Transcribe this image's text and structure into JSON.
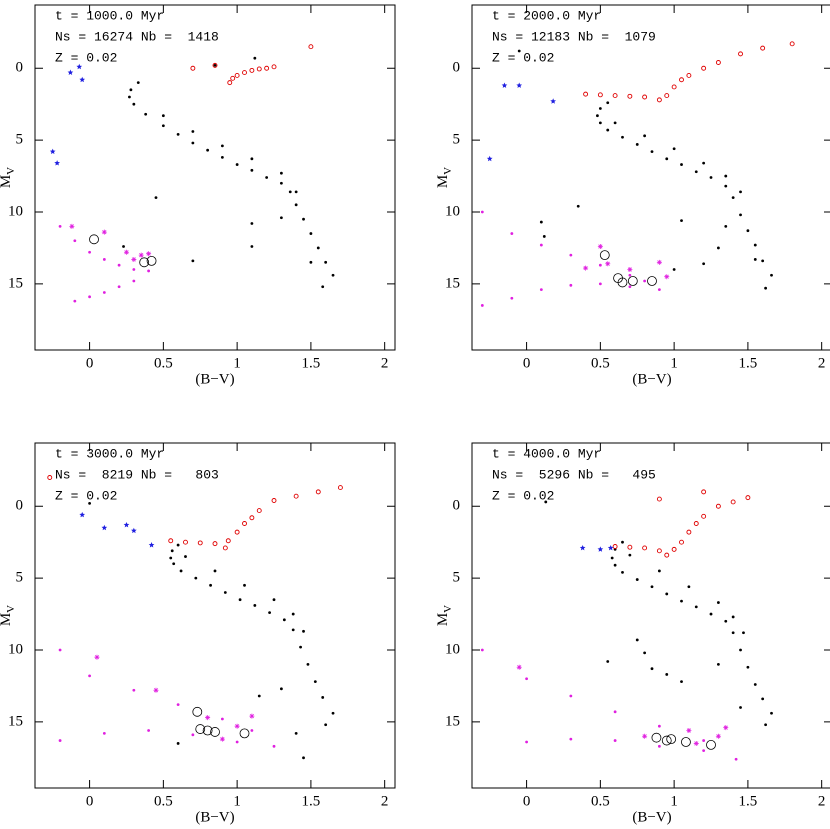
{
  "chart_data": [
    {
      "type": "scatter",
      "title_lines": [
        "t = 1000.0 Myr",
        "Ns = 16274 Nb =  1418",
        "Z = 0.02"
      ],
      "xlabel": "(B−V)",
      "ylabel": "M",
      "ylabel_sub": "V",
      "xlim": [
        -0.37,
        2.07
      ],
      "ylim": [
        19.6,
        -4.4
      ],
      "xticks": [
        0,
        0.5,
        1,
        1.5,
        2
      ],
      "yticks": [
        0,
        5,
        10,
        15
      ],
      "series": [
        {
          "color": "#000000",
          "marker": "dot",
          "x": [
            0.33,
            0.28,
            0.27,
            0.3,
            0.38,
            0.5,
            0.6,
            0.7,
            0.8,
            0.9,
            1.0,
            1.1,
            1.2,
            1.3,
            1.36,
            1.4,
            1.45,
            1.5,
            1.55,
            1.6,
            1.65,
            0.5,
            0.7,
            0.9,
            1.1,
            1.3,
            1.4,
            1.5,
            1.58,
            0.85,
            1.12,
            0.45,
            1.1,
            1.1,
            0.7,
            1.3,
            0.23
          ],
          "y": [
            1.0,
            1.5,
            2.0,
            2.5,
            3.2,
            4.0,
            4.6,
            5.2,
            5.7,
            6.2,
            6.7,
            7.1,
            7.6,
            8.0,
            8.6,
            9.5,
            10.5,
            11.5,
            12.5,
            13.5,
            14.4,
            3.3,
            4.4,
            5.4,
            6.3,
            7.3,
            8.6,
            13.5,
            15.2,
            -0.2,
            -0.7,
            9.0,
            10.8,
            12.4,
            13.4,
            10.4,
            12.4
          ]
        },
        {
          "color": "#e020e0",
          "marker": "dot",
          "x": [
            -0.2,
            -0.1,
            0,
            0.1,
            0.2,
            0.3,
            0.4,
            0.3,
            0.2,
            0.1,
            0,
            -0.1
          ],
          "y": [
            11,
            12,
            12.8,
            13.3,
            13.7,
            14.0,
            14.1,
            14.8,
            15.2,
            15.6,
            15.9,
            16.2
          ]
        },
        {
          "color": "#e020e0",
          "marker": "asterisk",
          "x": [
            0.25,
            0.35,
            0.4,
            0.3,
            -0.12,
            0.1
          ],
          "y": [
            12.8,
            13.0,
            12.9,
            13.3,
            11.0,
            11.4
          ]
        },
        {
          "color": "#e00000",
          "marker": "circle",
          "x": [
            0.95,
            0.97,
            1.0,
            1.05,
            1.1,
            1.15,
            1.2,
            1.25,
            1.5,
            0.7,
            0.85
          ],
          "y": [
            1.0,
            0.7,
            0.5,
            0.3,
            0.15,
            0.05,
            0.0,
            -0.1,
            -1.5,
            0.0,
            -0.2
          ]
        },
        {
          "color": "#2020e0",
          "marker": "star",
          "x": [
            -0.13,
            -0.07,
            -0.05,
            -0.25,
            -0.22
          ],
          "y": [
            0.3,
            -0.1,
            0.8,
            5.8,
            6.6
          ]
        },
        {
          "color": "#000000",
          "marker": "ring",
          "x": [
            0.03,
            0.37,
            0.42
          ],
          "y": [
            11.9,
            13.5,
            13.4
          ]
        }
      ]
    },
    {
      "type": "scatter",
      "title_lines": [
        "t = 2000.0 Myr",
        "Ns = 12183 Nb =  1079",
        "Z = 0.02"
      ],
      "xlabel": "(B−V)",
      "ylabel": "M",
      "ylabel_sub": "V",
      "xlim": [
        -0.37,
        2.07
      ],
      "ylim": [
        19.6,
        -4.4
      ],
      "xticks": [
        0,
        0.5,
        1,
        1.5,
        2
      ],
      "yticks": [
        0,
        5,
        10,
        15
      ],
      "series": [
        {
          "color": "#000000",
          "marker": "dot",
          "x": [
            0.55,
            0.5,
            0.48,
            0.5,
            0.55,
            0.65,
            0.75,
            0.85,
            0.95,
            1.05,
            1.15,
            1.25,
            1.35,
            1.4,
            1.45,
            1.5,
            1.55,
            1.6,
            1.66,
            0.6,
            0.8,
            1.0,
            1.2,
            1.35,
            1.45,
            1.55,
            1.62,
            -0.05,
            0.1,
            0.12,
            0.35,
            1.0,
            1.2,
            1.3,
            1.05,
            1.35
          ],
          "y": [
            2.4,
            2.8,
            3.3,
            3.8,
            4.3,
            4.8,
            5.3,
            5.8,
            6.3,
            6.7,
            7.2,
            7.6,
            8.2,
            9.0,
            10.2,
            11.3,
            12.3,
            13.4,
            14.4,
            3.8,
            4.7,
            5.6,
            6.6,
            7.5,
            8.6,
            13.3,
            15.3,
            -1.2,
            10.7,
            11.7,
            9.6,
            14.0,
            13.6,
            12.5,
            10.6,
            11.0
          ]
        },
        {
          "color": "#e020e0",
          "marker": "dot",
          "x": [
            -0.3,
            -0.1,
            0.1,
            0.3,
            0.5,
            0.7,
            0.8,
            0.9,
            0.7,
            0.5,
            0.3,
            0.1,
            -0.1,
            -0.3
          ],
          "y": [
            10,
            11.5,
            12.3,
            13.0,
            13.7,
            14.4,
            14.8,
            15.4,
            15.2,
            15.0,
            15.1,
            15.4,
            16.0,
            16.5
          ]
        },
        {
          "color": "#e020e0",
          "marker": "asterisk",
          "x": [
            0.5,
            0.55,
            0.7,
            0.9,
            0.95,
            0.4
          ],
          "y": [
            12.4,
            13.6,
            14.0,
            13.5,
            14.5,
            13.9
          ]
        },
        {
          "color": "#e00000",
          "marker": "circle",
          "x": [
            0.4,
            0.5,
            0.6,
            0.7,
            0.8,
            0.9,
            0.95,
            1.0,
            1.05,
            1.1,
            1.2,
            1.3,
            1.45,
            1.6,
            1.8
          ],
          "y": [
            1.8,
            1.85,
            1.9,
            1.95,
            2.0,
            2.2,
            1.9,
            1.3,
            0.8,
            0.5,
            0.0,
            -0.4,
            -1.0,
            -1.4,
            -1.7
          ]
        },
        {
          "color": "#2020e0",
          "marker": "star",
          "x": [
            -0.15,
            -0.05,
            0.18,
            -0.25
          ],
          "y": [
            1.2,
            1.2,
            2.3,
            6.3
          ]
        },
        {
          "color": "#000000",
          "marker": "ring",
          "x": [
            0.53,
            0.62,
            0.65,
            0.72,
            0.85
          ],
          "y": [
            13.0,
            14.6,
            14.9,
            14.8,
            14.8
          ]
        }
      ]
    },
    {
      "type": "scatter",
      "title_lines": [
        "t = 3000.0 Myr",
        "Ns =  8219 Nb =   803",
        "Z = 0.02"
      ],
      "xlabel": "(B−V)",
      "ylabel": "M",
      "ylabel_sub": "V",
      "xlim": [
        -0.37,
        2.07
      ],
      "ylim": [
        19.6,
        -4.4
      ],
      "xticks": [
        0,
        0.5,
        1,
        1.5,
        2
      ],
      "yticks": [
        0,
        5,
        10,
        15
      ],
      "series": [
        {
          "color": "#000000",
          "marker": "dot",
          "x": [
            0.6,
            0.56,
            0.55,
            0.57,
            0.62,
            0.72,
            0.82,
            0.92,
            1.02,
            1.12,
            1.22,
            1.32,
            1.38,
            1.43,
            1.48,
            1.53,
            1.58,
            1.65,
            0.65,
            0.85,
            1.05,
            1.25,
            1.38,
            1.45,
            1.6,
            0.0,
            0.6,
            1.15,
            1.4,
            1.45,
            1.3
          ],
          "y": [
            2.7,
            3.1,
            3.6,
            4.0,
            4.5,
            5.0,
            5.5,
            6.0,
            6.5,
            6.9,
            7.4,
            7.9,
            8.6,
            9.8,
            11.0,
            12.2,
            13.3,
            14.4,
            3.5,
            4.5,
            5.5,
            6.5,
            7.5,
            8.7,
            15.2,
            -0.2,
            16.5,
            13.2,
            15.8,
            17.5,
            12.7
          ]
        },
        {
          "color": "#e020e0",
          "marker": "dot",
          "x": [
            -0.2,
            0,
            0.3,
            0.6,
            0.9,
            1.1,
            1.25,
            1.0,
            0.7,
            0.4,
            0.1,
            -0.2
          ],
          "y": [
            10,
            11.8,
            12.8,
            13.8,
            14.8,
            15.6,
            16.7,
            16.4,
            15.9,
            15.6,
            15.8,
            16.3
          ]
        },
        {
          "color": "#e020e0",
          "marker": "asterisk",
          "x": [
            0.05,
            0.45,
            0.8,
            1.0,
            1.1,
            0.9
          ],
          "y": [
            10.5,
            12.8,
            14.7,
            15.3,
            14.6,
            16.2
          ]
        },
        {
          "color": "#e00000",
          "marker": "circle",
          "x": [
            0.55,
            0.65,
            0.75,
            0.85,
            0.92,
            0.94,
            1.0,
            1.05,
            1.1,
            1.15,
            1.25,
            1.4,
            1.55,
            1.7,
            -0.27
          ],
          "y": [
            2.4,
            2.5,
            2.55,
            2.6,
            2.9,
            2.4,
            1.8,
            1.2,
            0.8,
            0.3,
            -0.4,
            -0.7,
            -1.0,
            -1.3,
            -2.0
          ]
        },
        {
          "color": "#2020e0",
          "marker": "star",
          "x": [
            -0.05,
            0.1,
            0.25,
            0.3,
            0.42
          ],
          "y": [
            0.6,
            1.5,
            1.3,
            1.7,
            2.7
          ]
        },
        {
          "color": "#000000",
          "marker": "ring",
          "x": [
            0.73,
            0.75,
            0.8,
            0.85,
            1.05
          ],
          "y": [
            14.3,
            15.5,
            15.6,
            15.7,
            15.8
          ]
        }
      ]
    },
    {
      "type": "scatter",
      "title_lines": [
        "t = 4000.0 Myr",
        "Ns =  5296 Nb =   495",
        "Z = 0.02"
      ],
      "xlabel": "(B−V)",
      "ylabel": "M",
      "ylabel_sub": "V",
      "xlim": [
        -0.37,
        2.07
      ],
      "ylim": [
        19.6,
        -4.4
      ],
      "xticks": [
        0,
        0.5,
        1,
        1.5,
        2
      ],
      "yticks": [
        0,
        5,
        10,
        15
      ],
      "series": [
        {
          "color": "#000000",
          "marker": "dot",
          "x": [
            0.65,
            0.6,
            0.58,
            0.6,
            0.65,
            0.75,
            0.85,
            0.95,
            1.05,
            1.15,
            1.25,
            1.35,
            1.4,
            1.45,
            1.5,
            1.55,
            1.6,
            1.66,
            0.7,
            0.9,
            1.1,
            1.3,
            1.4,
            1.47,
            1.62,
            0.13,
            0.55,
            0.75,
            0.8,
            0.85,
            0.95,
            1.05,
            1.3,
            1.45
          ],
          "y": [
            2.5,
            3.0,
            3.6,
            4.1,
            4.6,
            5.1,
            5.6,
            6.1,
            6.6,
            7.0,
            7.5,
            8.0,
            8.8,
            10.0,
            11.2,
            12.4,
            13.4,
            14.4,
            3.4,
            4.5,
            5.6,
            6.7,
            7.7,
            8.8,
            15.2,
            -0.3,
            10.8,
            9.3,
            10.2,
            11.3,
            11.7,
            12.2,
            11.0,
            14.0
          ]
        },
        {
          "color": "#e020e0",
          "marker": "dot",
          "x": [
            -0.3,
            0,
            0.3,
            0.6,
            0.9,
            1.2,
            1.42,
            1.2,
            0.9,
            0.6,
            0.3,
            0
          ],
          "y": [
            10,
            12,
            13.2,
            14.3,
            15.3,
            16.3,
            17.6,
            17.0,
            16.7,
            16.3,
            16.2,
            16.4
          ]
        },
        {
          "color": "#e020e0",
          "marker": "asterisk",
          "x": [
            -0.05,
            1.1,
            1.3,
            1.35,
            1.15,
            0.8
          ],
          "y": [
            11.2,
            15.6,
            16.0,
            15.4,
            16.5,
            16.0
          ]
        },
        {
          "color": "#e00000",
          "marker": "circle",
          "x": [
            0.6,
            0.7,
            0.8,
            0.9,
            0.95,
            1.0,
            1.05,
            1.1,
            1.15,
            1.2,
            1.3,
            1.4,
            1.5,
            1.2,
            0.9
          ],
          "y": [
            2.8,
            2.85,
            2.9,
            3.1,
            3.4,
            3.0,
            2.5,
            1.8,
            1.2,
            0.7,
            0.0,
            -0.3,
            -0.6,
            -1.0,
            -0.5
          ]
        },
        {
          "color": "#2020e0",
          "marker": "star",
          "x": [
            0.38,
            0.5,
            0.57
          ],
          "y": [
            2.9,
            3.0,
            2.9
          ]
        },
        {
          "color": "#000000",
          "marker": "ring",
          "x": [
            0.88,
            0.95,
            0.98,
            1.08,
            1.25
          ],
          "y": [
            16.1,
            16.3,
            16.2,
            16.4,
            16.6
          ]
        }
      ]
    }
  ]
}
